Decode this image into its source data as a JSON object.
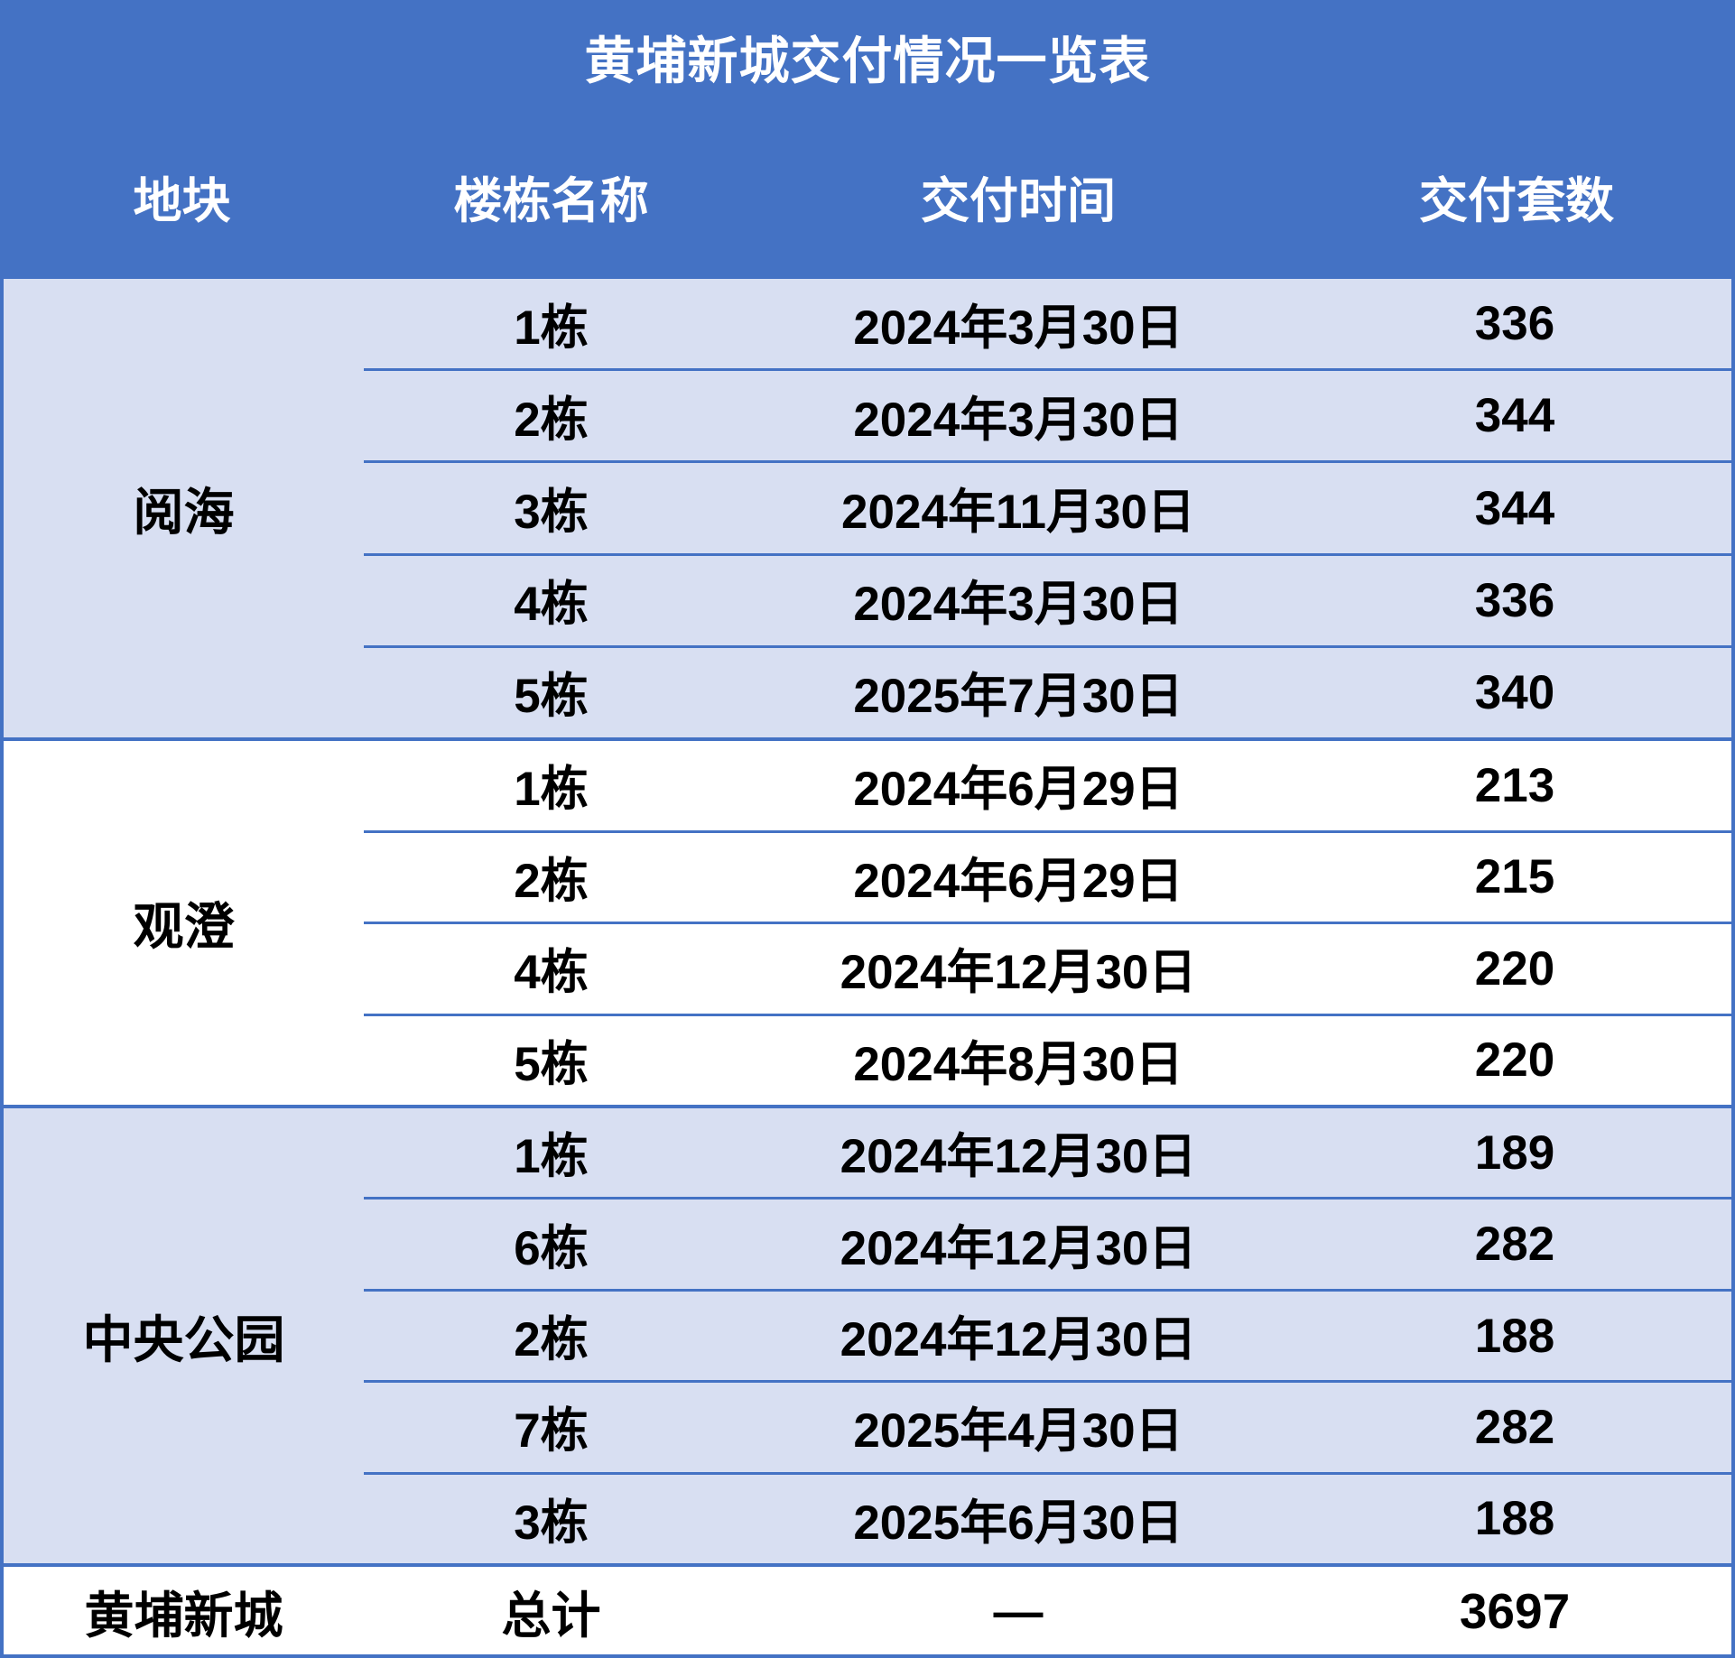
{
  "title": "黄埔新城交付情况一览表",
  "columns": {
    "plot": "地块",
    "building": "楼栋名称",
    "date": "交付时间",
    "units": "交付套数"
  },
  "groups": [
    {
      "label": "阅海",
      "rows": [
        {
          "building": "1栋",
          "date": "2024年3月30日",
          "units": "336"
        },
        {
          "building": "2栋",
          "date": "2024年3月30日",
          "units": "344"
        },
        {
          "building": "3栋",
          "date": "2024年11月30日",
          "units": "344"
        },
        {
          "building": "4栋",
          "date": "2024年3月30日",
          "units": "336"
        },
        {
          "building": "5栋",
          "date": "2025年7月30日",
          "units": "340"
        }
      ]
    },
    {
      "label": "观澄",
      "rows": [
        {
          "building": "1栋",
          "date": "2024年6月29日",
          "units": "213"
        },
        {
          "building": "2栋",
          "date": "2024年6月29日",
          "units": "215"
        },
        {
          "building": "4栋",
          "date": "2024年12月30日",
          "units": "220"
        },
        {
          "building": "5栋",
          "date": "2024年8月30日",
          "units": "220"
        }
      ]
    },
    {
      "label": "中央公园",
      "rows": [
        {
          "building": "1栋",
          "date": "2024年12月30日",
          "units": "189"
        },
        {
          "building": "6栋",
          "date": "2024年12月30日",
          "units": "282"
        },
        {
          "building": "2栋",
          "date": "2024年12月30日",
          "units": "188"
        },
        {
          "building": "7栋",
          "date": "2025年4月30日",
          "units": "282"
        },
        {
          "building": "3栋",
          "date": "2025年6月30日",
          "units": "188"
        }
      ]
    }
  ],
  "total": {
    "label": "黄埔新城",
    "building": "总计",
    "date": "—",
    "units": "3697"
  },
  "colors": {
    "header_bg": "#4472C4",
    "alt_group_bg": "#D8DFF2",
    "grid_line": "#4472C4",
    "header_text": "#FFFFFF",
    "body_text": "#000000"
  },
  "chart_data": {
    "type": "table",
    "title": "黄埔新城交付情况一览表",
    "columns": [
      "地块",
      "楼栋名称",
      "交付时间",
      "交付套数"
    ],
    "rows": [
      [
        "阅海",
        "1栋",
        "2024年3月30日",
        336
      ],
      [
        "阅海",
        "2栋",
        "2024年3月30日",
        344
      ],
      [
        "阅海",
        "3栋",
        "2024年11月30日",
        344
      ],
      [
        "阅海",
        "4栋",
        "2024年3月30日",
        336
      ],
      [
        "阅海",
        "5栋",
        "2025年7月30日",
        340
      ],
      [
        "观澄",
        "1栋",
        "2024年6月29日",
        213
      ],
      [
        "观澄",
        "2栋",
        "2024年6月29日",
        215
      ],
      [
        "观澄",
        "4栋",
        "2024年12月30日",
        220
      ],
      [
        "观澄",
        "5栋",
        "2024年8月30日",
        220
      ],
      [
        "中央公园",
        "1栋",
        "2024年12月30日",
        189
      ],
      [
        "中央公园",
        "6栋",
        "2024年12月30日",
        282
      ],
      [
        "中央公园",
        "2栋",
        "2024年12月30日",
        188
      ],
      [
        "中央公园",
        "7栋",
        "2025年4月30日",
        282
      ],
      [
        "中央公园",
        "3栋",
        "2025年6月30日",
        188
      ],
      [
        "黄埔新城",
        "总计",
        "—",
        3697
      ]
    ]
  }
}
